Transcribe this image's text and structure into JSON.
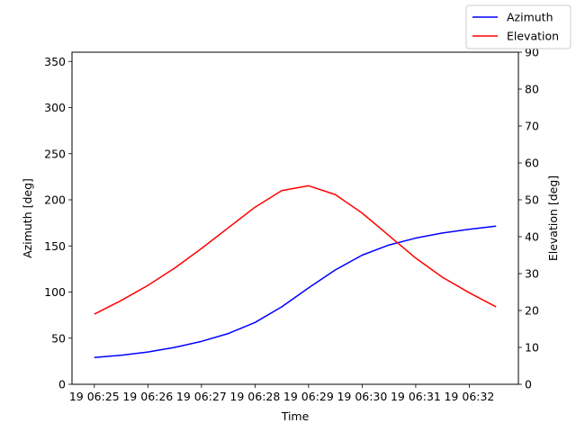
{
  "chart_data": {
    "type": "line",
    "xlabel": "Time",
    "x": [
      "06:25:00",
      "06:25:30",
      "06:26:00",
      "06:26:30",
      "06:27:00",
      "06:27:30",
      "06:28:00",
      "06:28:30",
      "06:29:00",
      "06:29:30",
      "06:30:00",
      "06:30:30",
      "06:31:00",
      "06:31:30",
      "06:32:00",
      "06:32:30"
    ],
    "x_ticks": [
      "19 06:25",
      "19 06:26",
      "19 06:27",
      "19 06:28",
      "19 06:29",
      "19 06:30",
      "19 06:31",
      "19 06:32"
    ],
    "xlim": [
      "06:24:35",
      "06:32:55"
    ],
    "axes": {
      "left": {
        "label": "Azimuth [deg]",
        "ylim": [
          0,
          360
        ],
        "ticks": [
          0,
          50,
          100,
          150,
          200,
          250,
          300,
          350
        ]
      },
      "right": {
        "label": "Elevation [deg]",
        "ylim": [
          0,
          90
        ],
        "ticks": [
          0,
          10,
          20,
          30,
          40,
          50,
          60,
          70,
          80,
          90
        ]
      }
    },
    "series": [
      {
        "name": "Azimuth",
        "axis": "left",
        "color": "#0000ff",
        "values": [
          29,
          31.5,
          35,
          40,
          46.5,
          55,
          67,
          84,
          104.5,
          124,
          140,
          151,
          158.5,
          164,
          168,
          171.5
        ]
      },
      {
        "name": "Elevation",
        "axis": "right",
        "color": "#ff0000",
        "values": [
          19,
          22.7,
          26.8,
          31.5,
          36.8,
          42.4,
          48,
          52.5,
          53.8,
          51.4,
          46.4,
          40.3,
          34.2,
          29,
          24.8,
          21
        ]
      }
    ],
    "legend": "top-right",
    "grid": false
  }
}
